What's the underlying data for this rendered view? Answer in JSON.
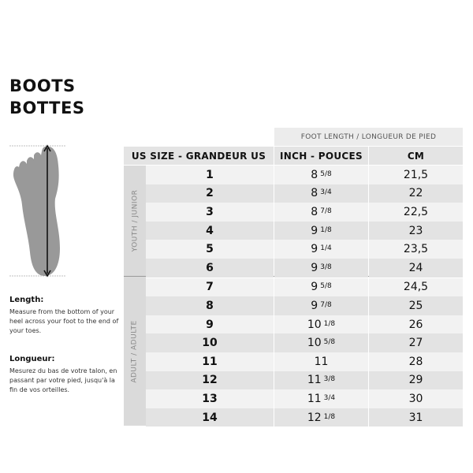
{
  "title_en": "BOOTS",
  "title_fr": "BOTTES",
  "length_label": "Length:",
  "length_desc": "Measure from the bottom of your heel across your foot to the end of your toes.",
  "longueur_label": "Longueur:",
  "longueur_desc": "Mesurez du bas de votre talon, en passant par votre pied, jusqu'à la fin de vos orteilles.",
  "table": {
    "foot_length_header": "FOOT LENGTH / LONGUEUR DE PIED",
    "headers": [
      "US SIZE - GRANDEUR US",
      "INCH - POUCES",
      "CM"
    ],
    "groups": [
      "YOUTH / JUNIOR",
      "ADULT / ADULTE"
    ],
    "colors": {
      "light_row": "#f2f2f2",
      "dark_row": "#e3e3e3",
      "group": "#dadada"
    },
    "rows": [
      {
        "us": "1",
        "inch": "8",
        "frac": "5/8",
        "cm": "21,5"
      },
      {
        "us": "2",
        "inch": "8",
        "frac": "3/4",
        "cm": "22"
      },
      {
        "us": "3",
        "inch": "8",
        "frac": "7/8",
        "cm": "22,5"
      },
      {
        "us": "4",
        "inch": "9",
        "frac": "1/8",
        "cm": "23"
      },
      {
        "us": "5",
        "inch": "9",
        "frac": "1/4",
        "cm": "23,5"
      },
      {
        "us": "6",
        "inch": "9",
        "frac": "3/8",
        "cm": "24"
      },
      {
        "us": "7",
        "inch": "9",
        "frac": "5/8",
        "cm": "24,5"
      },
      {
        "us": "8",
        "inch": "9",
        "frac": "7/8",
        "cm": "25"
      },
      {
        "us": "9",
        "inch": "10",
        "frac": "1/8",
        "cm": "26"
      },
      {
        "us": "10",
        "inch": "10",
        "frac": "5/8",
        "cm": "27"
      },
      {
        "us": "11",
        "inch": "11",
        "frac": "",
        "cm": "28"
      },
      {
        "us": "12",
        "inch": "11",
        "frac": "3/8",
        "cm": "29"
      },
      {
        "us": "13",
        "inch": "11",
        "frac": "3/4",
        "cm": "30"
      },
      {
        "us": "14",
        "inch": "12",
        "frac": "1/8",
        "cm": "31"
      }
    ]
  }
}
